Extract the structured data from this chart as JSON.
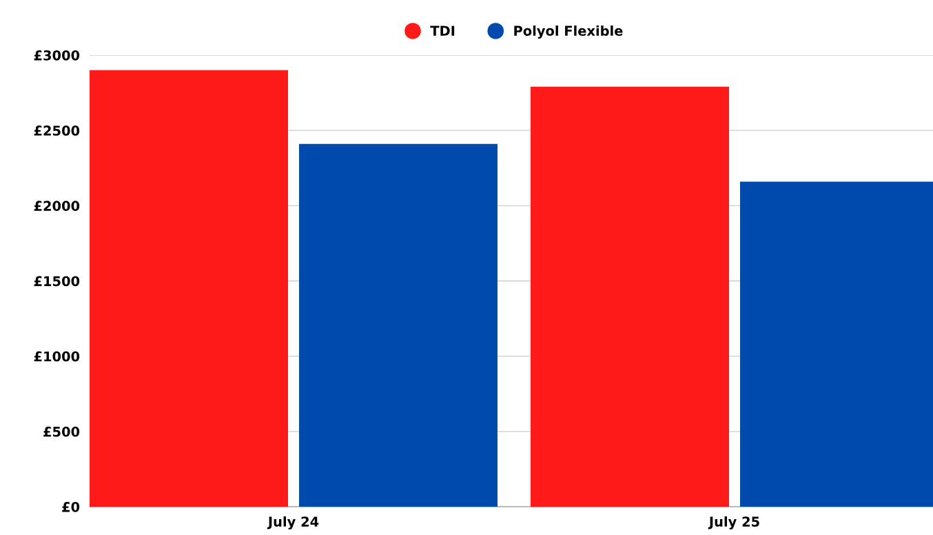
{
  "chart_data": {
    "type": "bar",
    "categories": [
      "July 24",
      "July 25"
    ],
    "series": [
      {
        "name": "TDI",
        "color": "#ff1a1a",
        "values": [
          2900,
          2790
        ]
      },
      {
        "name": "Polyol Flexible",
        "color": "#004aad",
        "values": [
          2410,
          2160
        ]
      }
    ],
    "ylim": [
      0,
      3000
    ],
    "yticks": [
      {
        "value": 0,
        "label": "£0"
      },
      {
        "value": 500,
        "label": "£500"
      },
      {
        "value": 1000,
        "label": "£1000"
      },
      {
        "value": 1500,
        "label": "£1500"
      },
      {
        "value": 2000,
        "label": "£2000"
      },
      {
        "value": 2500,
        "label": "£2500"
      },
      {
        "value": 3000,
        "label": "£3000"
      }
    ],
    "grid": "y",
    "legend": "top"
  }
}
